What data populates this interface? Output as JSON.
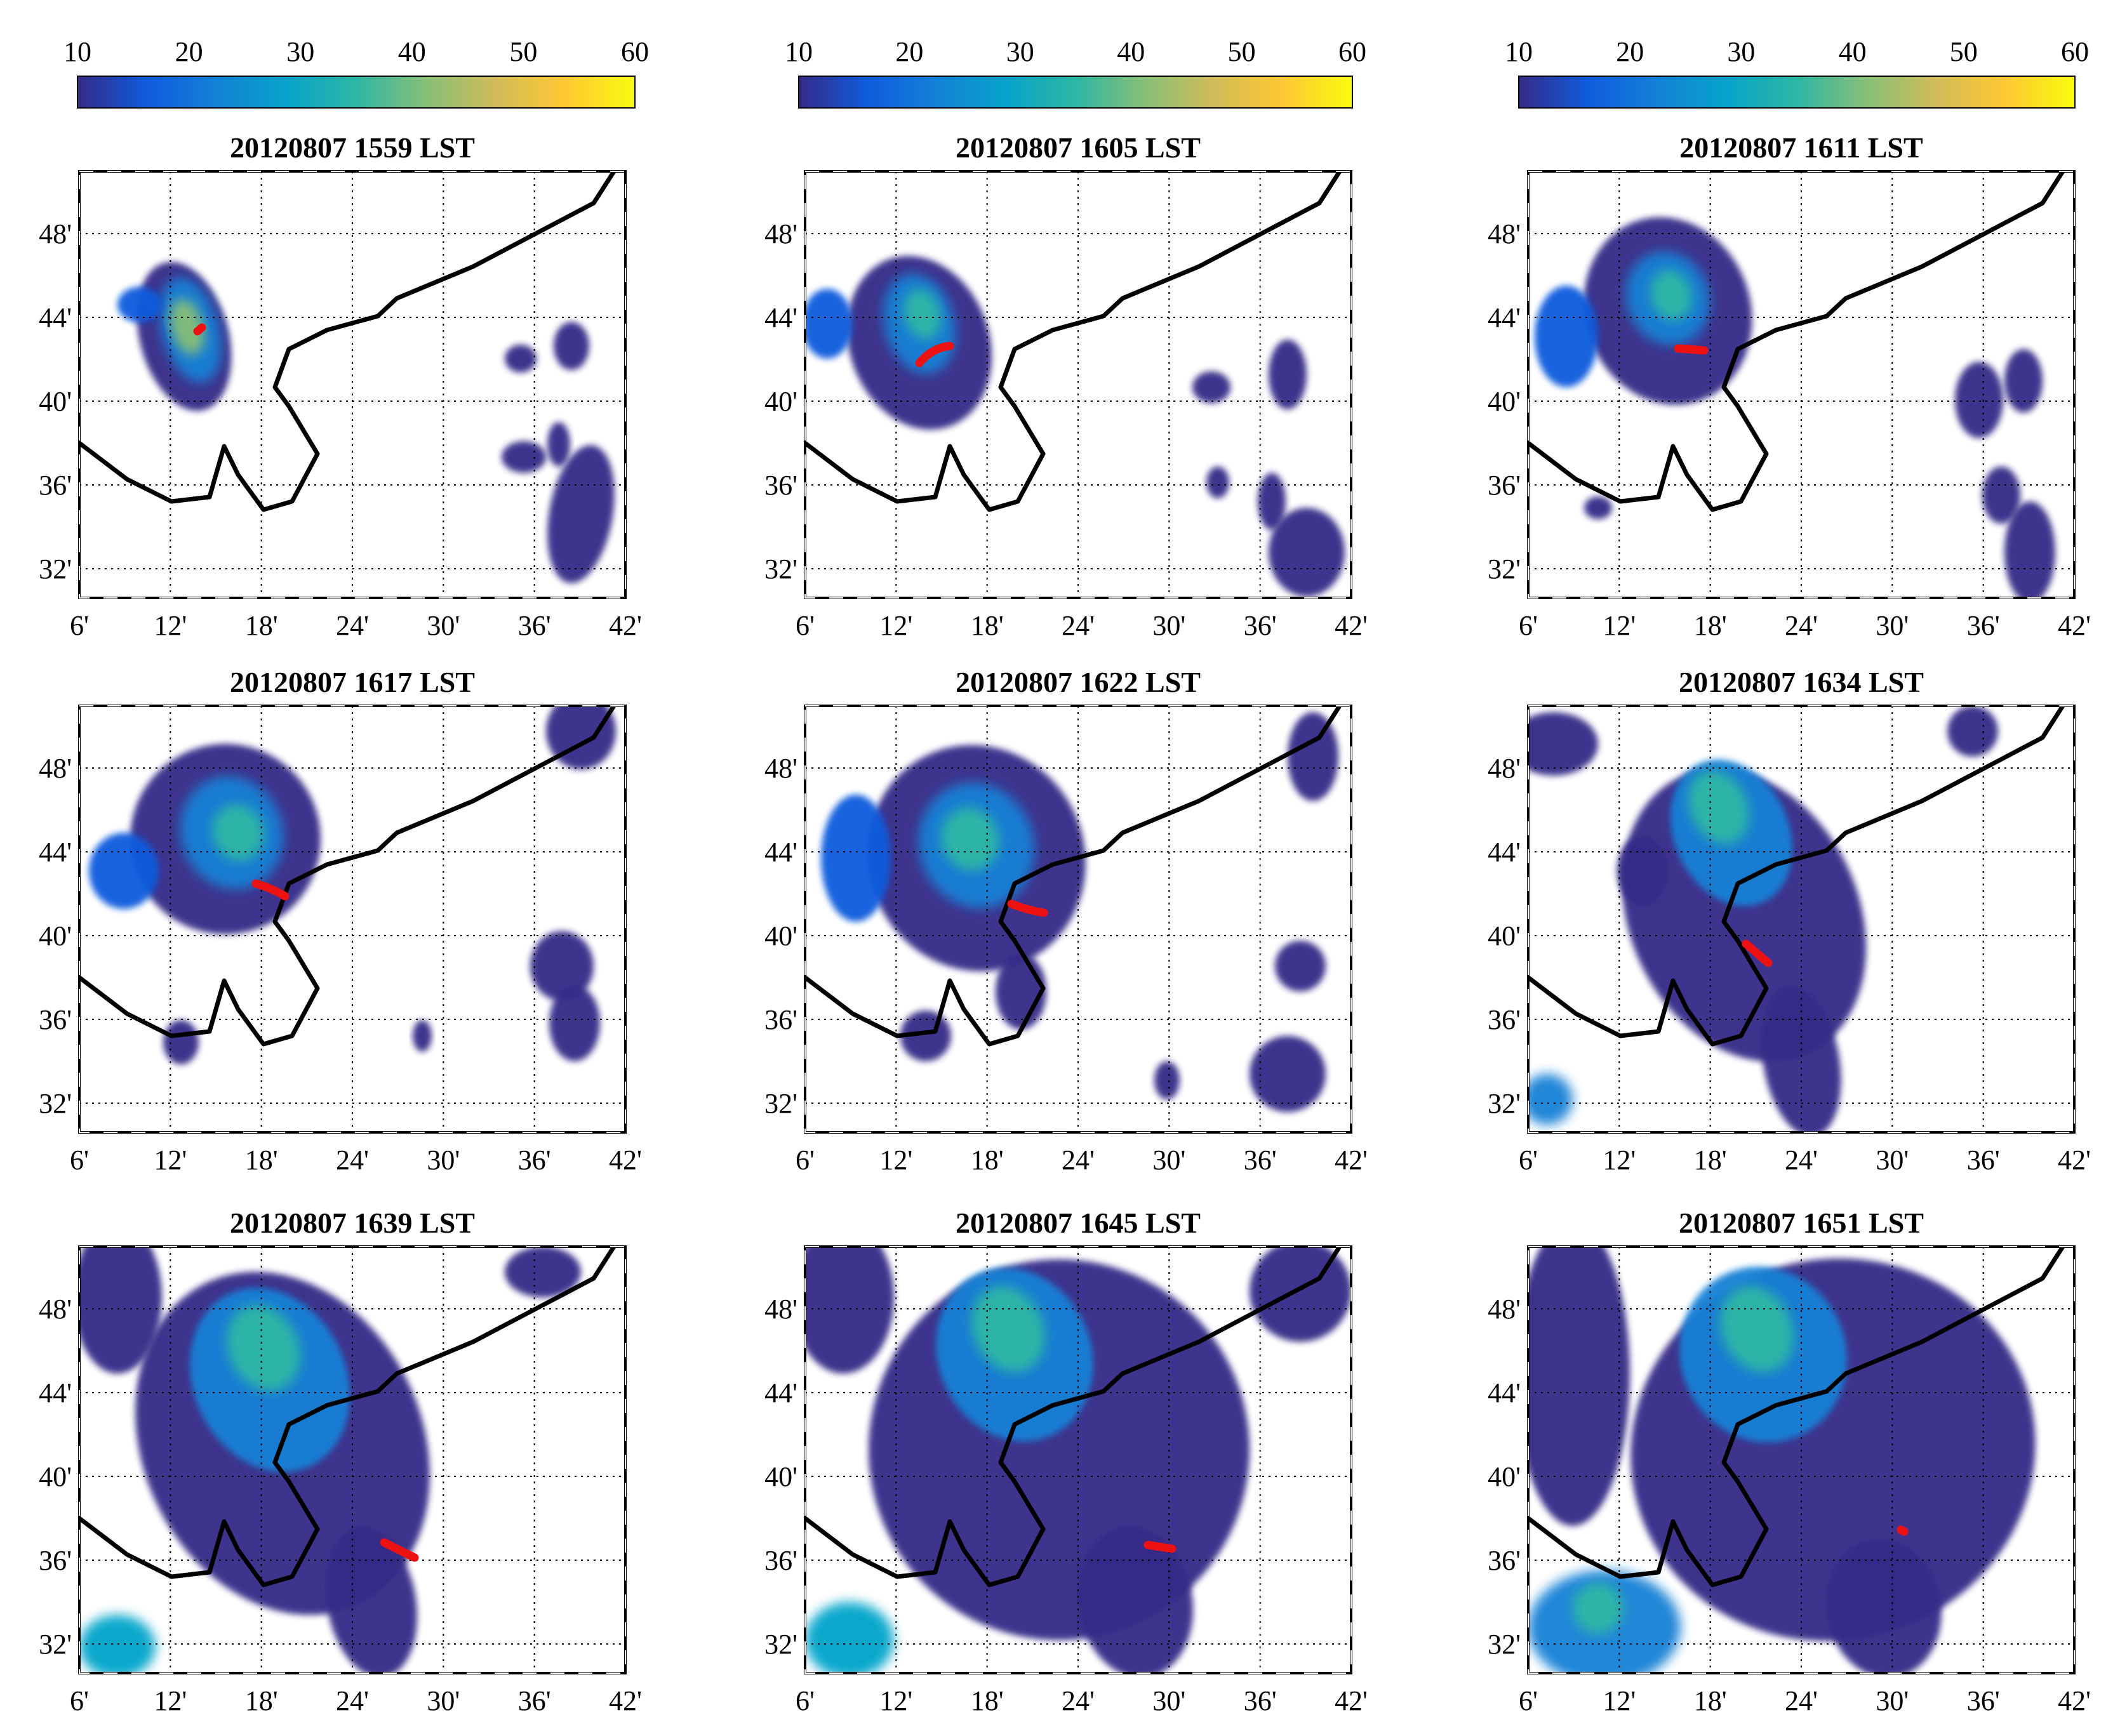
{
  "colorbar": {
    "ticks": [
      "10",
      "20",
      "30",
      "40",
      "50",
      "60"
    ],
    "range": [
      10,
      60
    ],
    "colors": [
      "#352a87",
      "#0f5cdd",
      "#1481d6",
      "#06a4ca",
      "#2eb7a4",
      "#87bf77",
      "#d1bb59",
      "#fec832",
      "#f9fb0e"
    ]
  },
  "axes": {
    "x_ticks": [
      "6'",
      "12'",
      "18'",
      "24'",
      "30'",
      "36'",
      "42'"
    ],
    "y_ticks": [
      "48'",
      "44'",
      "40'",
      "36'",
      "32'"
    ]
  },
  "panels": [
    {
      "title": "20120807  1559 LST"
    },
    {
      "title": "20120807  1605 LST"
    },
    {
      "title": "20120807  1611 LST"
    },
    {
      "title": "20120807  1617 LST"
    },
    {
      "title": "20120807  1622 LST"
    },
    {
      "title": "20120807  1634 LST"
    },
    {
      "title": "20120807  1639 LST"
    },
    {
      "title": "20120807  1645 LST"
    },
    {
      "title": "20120807  1651 LST"
    }
  ],
  "style": {
    "boundary_color": "#000000",
    "track_color": "#ee1111",
    "grid_color": "#000000"
  }
}
